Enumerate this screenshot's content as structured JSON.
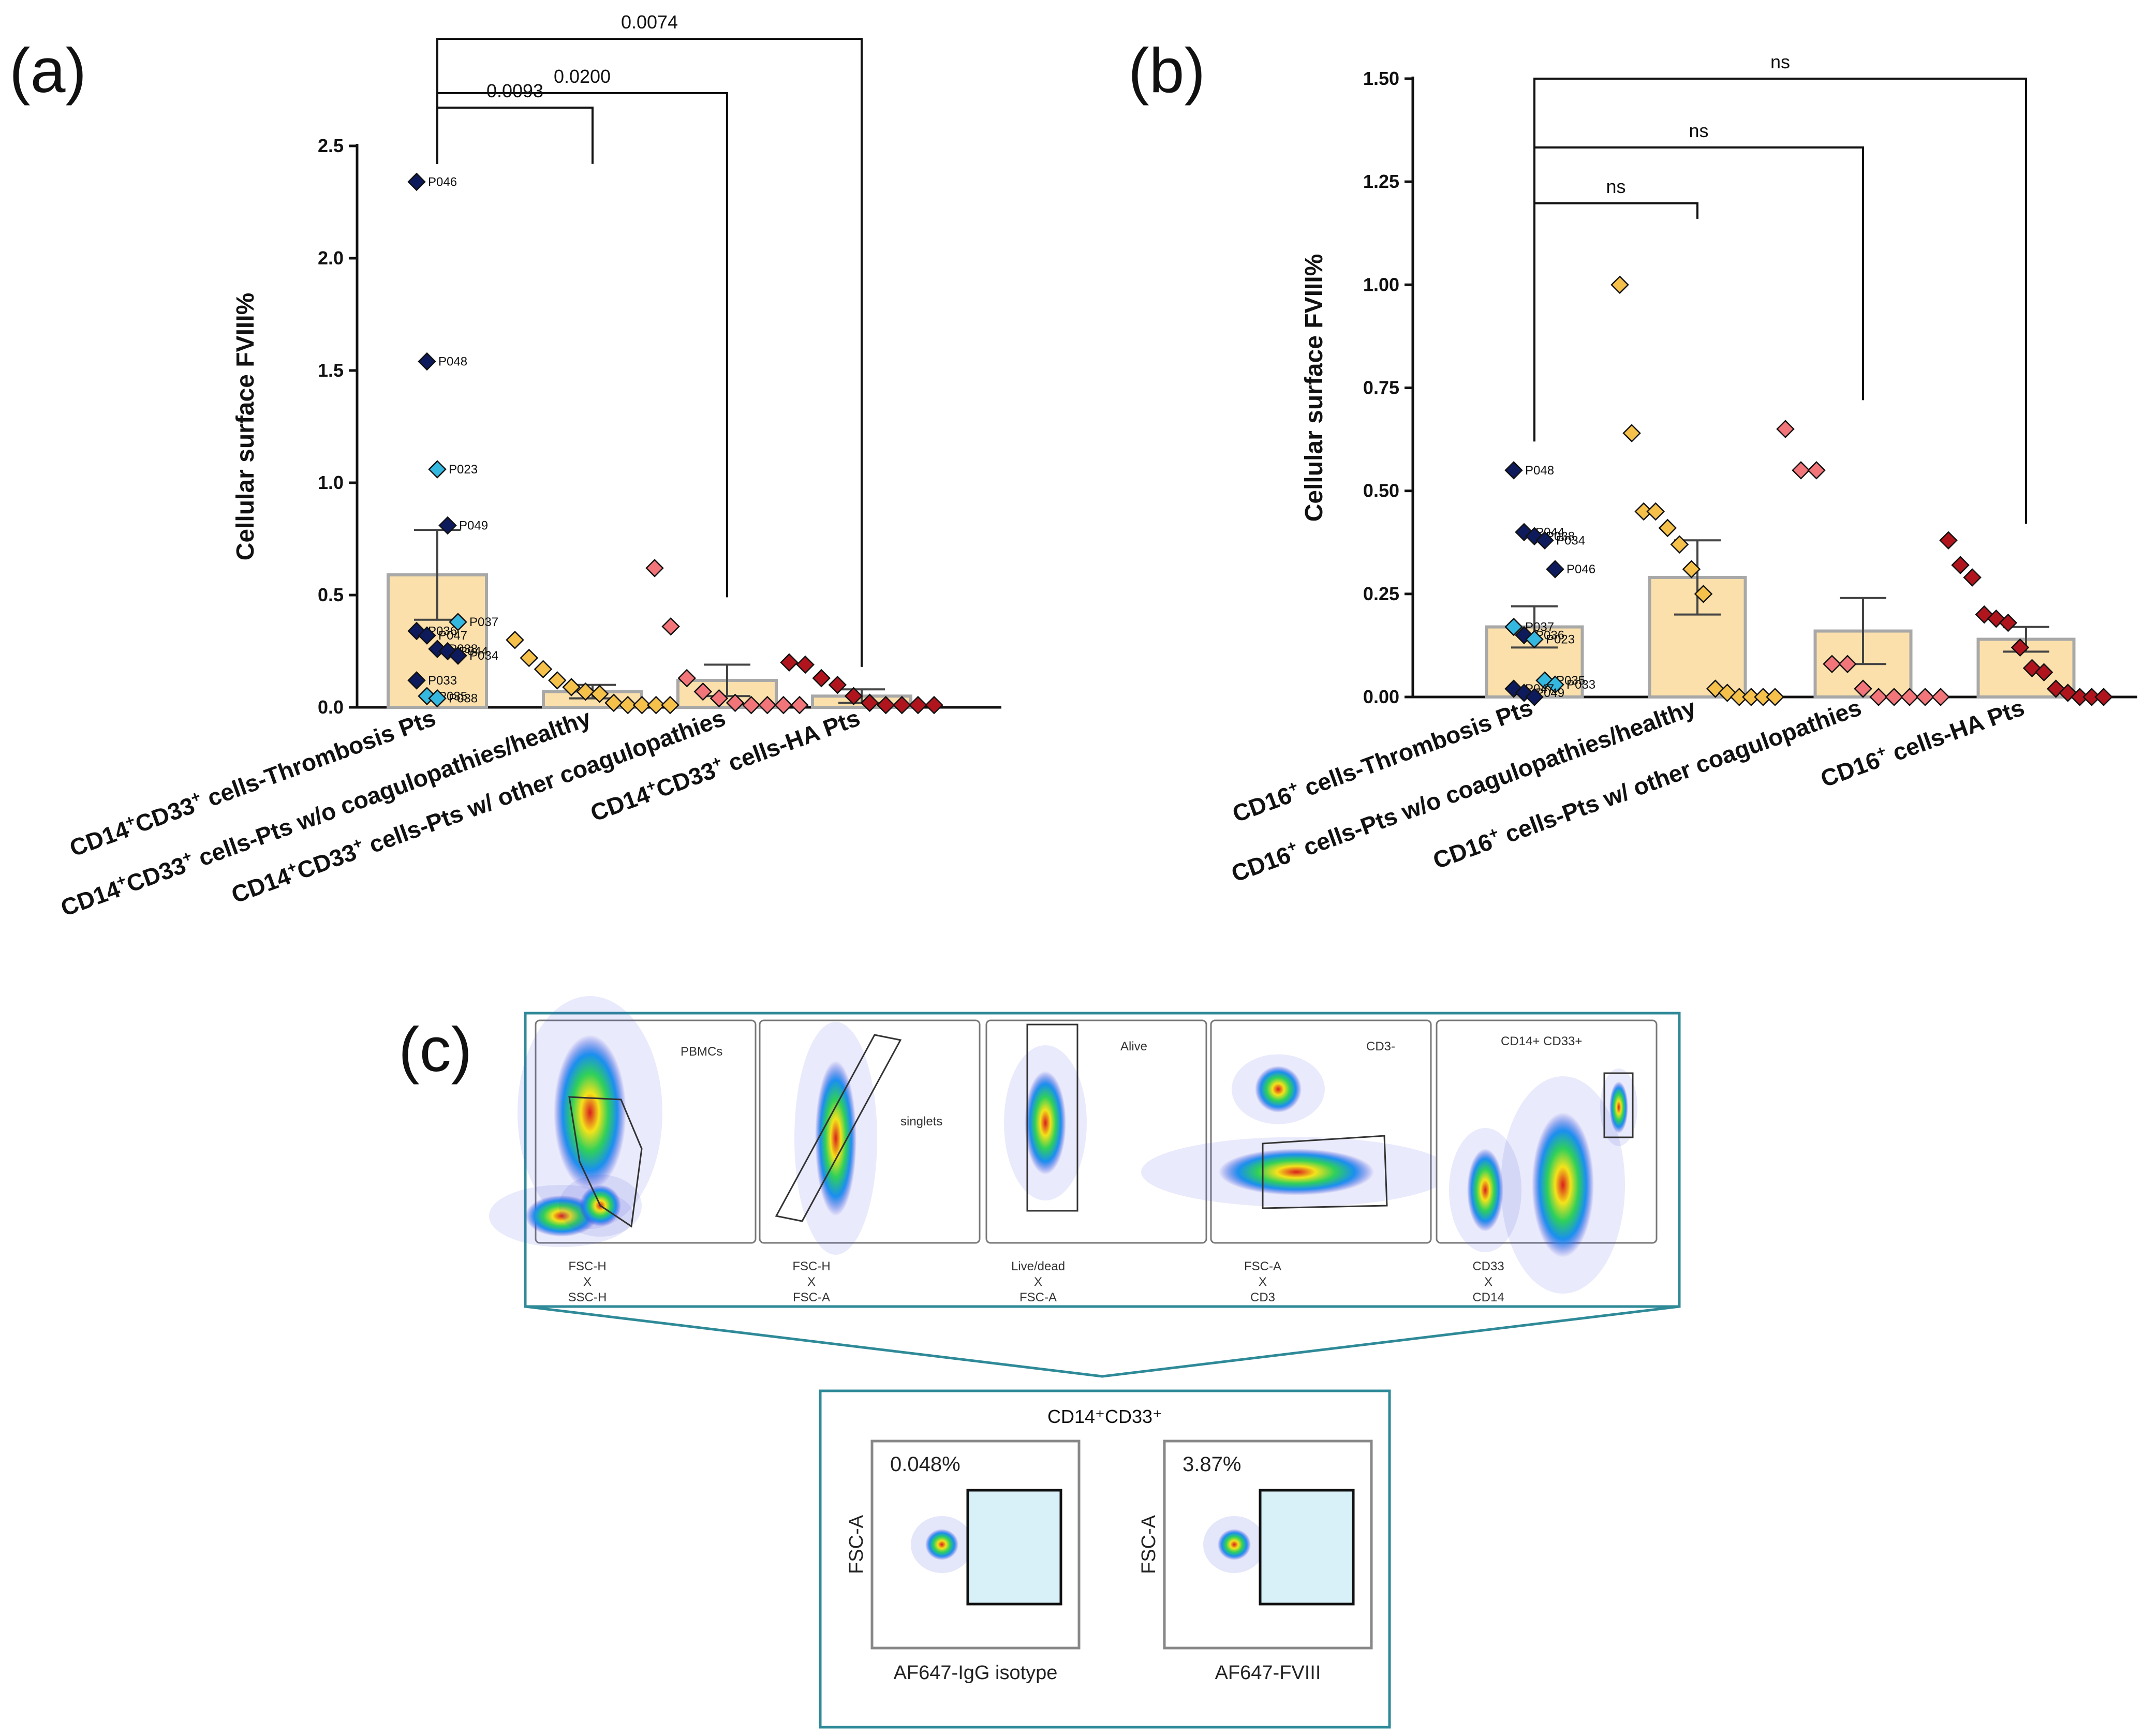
{
  "panel_labels": {
    "a": "(a)",
    "b": "(b)",
    "c": "(c)"
  },
  "colors": {
    "bar_fill": "#fbe0ab",
    "bar_edge": "#a8a8a8",
    "thrombosis_dark": "#0d1a5c",
    "thrombosis_light": "#35b8df",
    "healthy": "#f5c14a",
    "other_coag": "#f2757a",
    "ha": "#b0151e",
    "frame_teal": "#2f8a98",
    "gate_fill": "#d8f0f8"
  },
  "chart_data": [
    {
      "type": "bar",
      "panel": "(a)",
      "ylabel": "Cellular surface FVIII%",
      "ylim": [
        0,
        2.5
      ],
      "yticks": [
        "0.0",
        "0.5",
        "1.0",
        "1.5",
        "2.0",
        "2.5"
      ],
      "categories": [
        {
          "pre": "CD14",
          "sup1": "+",
          "mid": "CD33",
          "sup2": "+",
          "post": "  cells-Thrombosis Pts"
        },
        {
          "pre": "CD14",
          "sup1": "+",
          "mid": "CD33",
          "sup2": "+",
          "post": "  cells-Pts w/o coagulopathies/healthy"
        },
        {
          "pre": "CD14",
          "sup1": "+",
          "mid": "CD33",
          "sup2": "+",
          "post": "  cells-Pts w/ other coagulopathies"
        },
        {
          "pre": "CD14",
          "sup1": "+",
          "mid": "CD33",
          "sup2": "+",
          "post": "  cells-HA Pts"
        }
      ],
      "values": [
        0.59,
        0.07,
        0.12,
        0.05
      ],
      "errors": [
        0.2,
        0.03,
        0.07,
        0.03
      ],
      "comparisons": [
        {
          "from": 0,
          "to": 1,
          "label": "0.0093"
        },
        {
          "from": 0,
          "to": 2,
          "label": "0.0200"
        },
        {
          "from": 0,
          "to": 3,
          "label": "0.0074"
        }
      ],
      "points": [
        [
          {
            "v": 2.34,
            "c": "dark",
            "id": "P046"
          },
          {
            "v": 1.54,
            "c": "dark",
            "id": "P048"
          },
          {
            "v": 1.06,
            "c": "light",
            "id": "P023"
          },
          {
            "v": 0.81,
            "c": "dark",
            "id": "P049"
          },
          {
            "v": 0.38,
            "c": "light",
            "id": "P037"
          },
          {
            "v": 0.34,
            "c": "dark",
            "id": "P036"
          },
          {
            "v": 0.32,
            "c": "dark",
            "id": "P047"
          },
          {
            "v": 0.26,
            "c": "dark",
            "id": "P038"
          },
          {
            "v": 0.25,
            "c": "dark",
            "id": "P044"
          },
          {
            "v": 0.23,
            "c": "dark",
            "id": "P034"
          },
          {
            "v": 0.12,
            "c": "dark",
            "id": "P033"
          },
          {
            "v": 0.05,
            "c": "light",
            "id": "P035"
          },
          {
            "v": 0.04,
            "c": "light",
            "id": "P038"
          }
        ],
        [
          {
            "v": 0.3
          },
          {
            "v": 0.22
          },
          {
            "v": 0.17
          },
          {
            "v": 0.12
          },
          {
            "v": 0.09
          },
          {
            "v": 0.07
          },
          {
            "v": 0.06
          },
          {
            "v": 0.02
          },
          {
            "v": 0.01
          },
          {
            "v": 0.01
          },
          {
            "v": 0.01
          },
          {
            "v": 0.01
          }
        ],
        [
          {
            "v": 0.62
          },
          {
            "v": 0.36
          },
          {
            "v": 0.13
          },
          {
            "v": 0.07
          },
          {
            "v": 0.04
          },
          {
            "v": 0.02
          },
          {
            "v": 0.01
          },
          {
            "v": 0.01
          },
          {
            "v": 0.01
          },
          {
            "v": 0.01
          }
        ],
        [
          {
            "v": 0.2
          },
          {
            "v": 0.19
          },
          {
            "v": 0.13
          },
          {
            "v": 0.1
          },
          {
            "v": 0.05
          },
          {
            "v": 0.02
          },
          {
            "v": 0.01
          },
          {
            "v": 0.01
          },
          {
            "v": 0.01
          },
          {
            "v": 0.01
          }
        ]
      ]
    },
    {
      "type": "bar",
      "panel": "(b)",
      "ylabel": "Cellular surface FVIII%",
      "ylim": [
        0,
        1.5
      ],
      "yticks": [
        "0.00",
        "0.25",
        "0.50",
        "0.75",
        "1.00",
        "1.25",
        "1.50"
      ],
      "categories": [
        {
          "pre": "CD16",
          "sup1": "+",
          "post": "  cells-Thrombosis Pts"
        },
        {
          "pre": "CD16",
          "sup1": "+",
          "post": "  cells-Pts w/o coagulopathies/healthy"
        },
        {
          "pre": "CD16",
          "sup1": "+",
          "post": "  cells-Pts w/ other coagulopathies"
        },
        {
          "pre": "CD16",
          "sup1": "+",
          "post": "  cells-HA Pts"
        }
      ],
      "values": [
        0.17,
        0.29,
        0.16,
        0.14
      ],
      "errors": [
        0.05,
        0.09,
        0.08,
        0.03
      ],
      "comparisons": [
        {
          "from": 0,
          "to": 1,
          "label": "ns"
        },
        {
          "from": 0,
          "to": 2,
          "label": "ns"
        },
        {
          "from": 0,
          "to": 3,
          "label": "ns"
        }
      ],
      "points": [
        [
          {
            "v": 0.55,
            "c": "dark",
            "id": "P048"
          },
          {
            "v": 0.4,
            "c": "dark",
            "id": "P044"
          },
          {
            "v": 0.39,
            "c": "dark",
            "id": "P038"
          },
          {
            "v": 0.38,
            "c": "dark",
            "id": "P034"
          },
          {
            "v": 0.31,
            "c": "dark",
            "id": "P046"
          },
          {
            "v": 0.17,
            "c": "light",
            "id": "P037"
          },
          {
            "v": 0.15,
            "c": "dark",
            "id": "P036"
          },
          {
            "v": 0.14,
            "c": "light",
            "id": "P023"
          },
          {
            "v": 0.04,
            "c": "light",
            "id": "P035"
          },
          {
            "v": 0.03,
            "c": "light",
            "id": "P033"
          },
          {
            "v": 0.02,
            "c": "dark",
            "id": "P047"
          },
          {
            "v": 0.01,
            "c": "dark",
            "id": "P049"
          },
          {
            "v": 0.0,
            "c": "dark",
            "id": ""
          }
        ],
        [
          {
            "v": 1.0
          },
          {
            "v": 0.64
          },
          {
            "v": 0.45
          },
          {
            "v": 0.45
          },
          {
            "v": 0.41
          },
          {
            "v": 0.37
          },
          {
            "v": 0.31
          },
          {
            "v": 0.25
          },
          {
            "v": 0.02
          },
          {
            "v": 0.01
          },
          {
            "v": 0.0
          },
          {
            "v": 0.0
          },
          {
            "v": 0.0
          },
          {
            "v": 0.0
          }
        ],
        [
          {
            "v": 0.65
          },
          {
            "v": 0.55
          },
          {
            "v": 0.55
          },
          {
            "v": 0.08
          },
          {
            "v": 0.08
          },
          {
            "v": 0.02
          },
          {
            "v": 0.0
          },
          {
            "v": 0.0
          },
          {
            "v": 0.0
          },
          {
            "v": 0.0
          },
          {
            "v": 0.0
          }
        ],
        [
          {
            "v": 0.38
          },
          {
            "v": 0.32
          },
          {
            "v": 0.29
          },
          {
            "v": 0.2
          },
          {
            "v": 0.19
          },
          {
            "v": 0.18
          },
          {
            "v": 0.12
          },
          {
            "v": 0.07
          },
          {
            "v": 0.06
          },
          {
            "v": 0.02
          },
          {
            "v": 0.01
          },
          {
            "v": 0.0
          },
          {
            "v": 0.0
          },
          {
            "v": 0.0
          }
        ]
      ]
    }
  ],
  "panel_c": {
    "gating": [
      {
        "gate": "PBMCs",
        "axes": [
          "FSC-H",
          "X",
          "SSC-H"
        ]
      },
      {
        "gate": "singlets",
        "axes": [
          "FSC-H",
          "X",
          "FSC-A"
        ]
      },
      {
        "gate": "Alive",
        "axes": [
          "Live/dead",
          "X",
          "FSC-A"
        ]
      },
      {
        "gate": "CD3-",
        "axes": [
          "FSC-A",
          "X",
          "CD3"
        ]
      },
      {
        "gate": "CD14+ CD33+",
        "axes": [
          "CD33",
          "X",
          "CD14"
        ]
      }
    ],
    "inset_title": "CD14⁺CD33⁺",
    "insets": [
      {
        "percent": "0.048%",
        "ylabel": "FSC-A",
        "xlabel": "AF647-IgG isotype"
      },
      {
        "percent": "3.87%",
        "ylabel": "FSC-A",
        "xlabel": "AF647-FVIII"
      }
    ]
  }
}
